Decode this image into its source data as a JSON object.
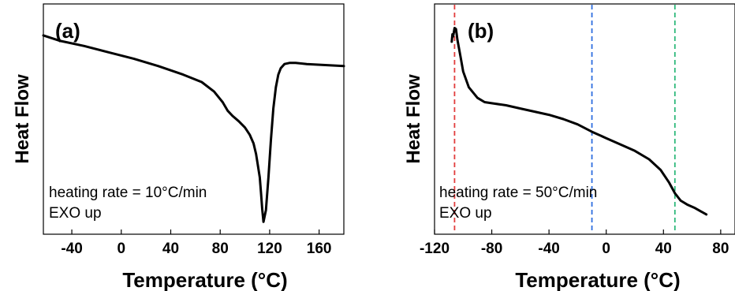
{
  "chart_data": [
    {
      "type": "line",
      "panel_label": "(a)",
      "xlabel": "Temperature (°C)",
      "ylabel": "Heat Flow",
      "xlim": [
        -63,
        180
      ],
      "ylim": [
        -1.0,
        1.0
      ],
      "x_ticks": [
        "-40",
        "0",
        "40",
        "80",
        "120",
        "160"
      ],
      "y_ticks_shown": false,
      "annotations": [
        "heating rate = 10°C/min",
        "EXO up"
      ],
      "series": [
        {
          "color": "#000000",
          "x": [
            -63,
            -50,
            -30,
            -10,
            10,
            30,
            50,
            65,
            75,
            82,
            86,
            90,
            95,
            100,
            104,
            107,
            109,
            110,
            112,
            113,
            114,
            115,
            117,
            119,
            121,
            123,
            125,
            127,
            129,
            132,
            136,
            141,
            150,
            165,
            180
          ],
          "y": [
            0.79,
            0.74,
            0.69,
            0.63,
            0.57,
            0.5,
            0.42,
            0.35,
            0.26,
            0.16,
            0.08,
            0.03,
            -0.02,
            -0.08,
            -0.15,
            -0.23,
            -0.33,
            -0.4,
            -0.55,
            -0.7,
            -0.85,
            -0.97,
            -0.86,
            -0.55,
            -0.2,
            0.1,
            0.3,
            0.42,
            0.48,
            0.52,
            0.53,
            0.53,
            0.52,
            0.51,
            0.5
          ]
        }
      ]
    },
    {
      "type": "line",
      "panel_label": "(b)",
      "xlabel": "Temperature (°C)",
      "ylabel": "Heat Flow",
      "xlim": [
        -120,
        90
      ],
      "ylim": [
        -1.0,
        1.0
      ],
      "x_ticks": [
        "-120",
        "-80",
        "-40",
        "0",
        "40",
        "80"
      ],
      "y_ticks_shown": false,
      "annotations": [
        "heating rate = 50°C/min",
        "EXO up"
      ],
      "vlines": [
        {
          "x": -106,
          "color": "#e23c3c"
        },
        {
          "x": -10,
          "color": "#2f6fe0"
        },
        {
          "x": 48,
          "color": "#2db87a"
        }
      ],
      "series": [
        {
          "color": "#000000",
          "x": [
            -108,
            -107.5,
            -107,
            -106,
            -105,
            -104,
            -102,
            -100,
            -96,
            -90,
            -85,
            -80,
            -70,
            -60,
            -50,
            -40,
            -30,
            -20,
            -10,
            0,
            10,
            20,
            30,
            38,
            44,
            48,
            52,
            57,
            62,
            66,
            70
          ],
          "y": [
            0.73,
            0.8,
            0.78,
            0.86,
            0.85,
            0.75,
            0.6,
            0.45,
            0.3,
            0.2,
            0.16,
            0.15,
            0.13,
            0.1,
            0.07,
            0.04,
            0.0,
            -0.05,
            -0.12,
            -0.18,
            -0.24,
            -0.3,
            -0.38,
            -0.48,
            -0.6,
            -0.7,
            -0.77,
            -0.81,
            -0.84,
            -0.87,
            -0.9
          ]
        }
      ]
    }
  ]
}
